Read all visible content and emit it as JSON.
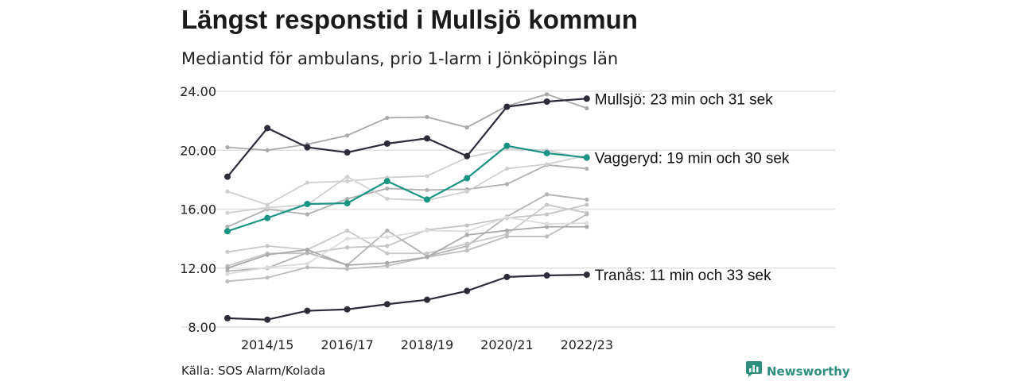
{
  "title": "Längst responstid i Mullsjö kommun",
  "subtitle": "Mediantid för ambulans, prio 1-larm i Jönköpings län",
  "source": "Källa: SOS Alarm/Kolada",
  "brand": {
    "name": "Newsworthy",
    "icon": "newsworthy-logo-icon",
    "color": "#2f8f7f"
  },
  "chart_data": {
    "type": "line",
    "title": "Längst responstid i Mullsjö kommun",
    "subtitle": "Mediantid för ambulans, prio 1-larm i Jönköpings län",
    "x": [
      "2013/14",
      "2014/15",
      "2015/16",
      "2016/17",
      "2017/18",
      "2018/19",
      "2019/20",
      "2020/21",
      "2021/22",
      "2022/23"
    ],
    "x_tick_labels": [
      "2014/15",
      "2016/17",
      "2018/19",
      "2020/21",
      "2022/23"
    ],
    "y_ticks": [
      "8.00",
      "12.00",
      "16.00",
      "20.00",
      "24.00"
    ],
    "ylim": [
      8,
      24
    ],
    "grid": true,
    "highlight_series": [
      {
        "name": "Mullsjö",
        "label": "Mullsjö: 23 min och 31 sek",
        "color": "#2b2b3a",
        "values": [
          18.2,
          21.5,
          20.2,
          19.85,
          20.45,
          20.8,
          19.6,
          22.95,
          23.3,
          23.5
        ]
      },
      {
        "name": "Vaggeryd",
        "label": "Vaggeryd: 19 min och 30 sek",
        "color": "#1a9482",
        "values": [
          14.5,
          15.4,
          16.35,
          16.4,
          17.9,
          16.65,
          18.1,
          20.3,
          19.8,
          19.5
        ]
      },
      {
        "name": "Tranås",
        "label": "Tranås: 11 min och 33 sek",
        "color": "#2b2b3a",
        "values": [
          8.6,
          8.5,
          9.1,
          9.2,
          9.55,
          9.85,
          10.45,
          11.4,
          11.5,
          11.55
        ]
      }
    ],
    "background_series": [
      {
        "color": "#a8a8a8",
        "values": [
          20.2,
          20.0,
          20.4,
          21.0,
          22.2,
          22.25,
          21.55,
          23.0,
          23.8,
          22.85
        ]
      },
      {
        "color": "#b0b0b0",
        "values": [
          14.8,
          16.0,
          15.65,
          16.7,
          17.4,
          17.3,
          17.35,
          17.7,
          19.0,
          18.75
        ]
      },
      {
        "color": "#cfcfcf",
        "values": [
          17.2,
          16.3,
          17.8,
          17.9,
          18.15,
          18.25,
          19.5,
          20.1,
          20.0,
          19.4
        ]
      },
      {
        "color": "#d0d0d0",
        "values": [
          15.75,
          16.1,
          16.3,
          18.2,
          16.7,
          16.6,
          17.2,
          18.75,
          19.05,
          19.65
        ]
      },
      {
        "color": "#c4c4c4",
        "values": [
          12.15,
          13.0,
          13.0,
          13.4,
          13.5,
          14.6,
          14.9,
          15.4,
          15.65,
          16.3
        ]
      },
      {
        "color": "#b4b4b4",
        "values": [
          11.8,
          12.0,
          13.05,
          12.2,
          14.55,
          12.8,
          13.5,
          15.5,
          17.0,
          16.65
        ]
      },
      {
        "color": "#c8c8c8",
        "values": [
          13.1,
          13.5,
          13.25,
          14.55,
          13.0,
          13.0,
          13.65,
          14.3,
          16.3,
          15.75
        ]
      },
      {
        "color": "#bdbdbd",
        "values": [
          11.1,
          11.35,
          12.05,
          11.95,
          12.15,
          12.75,
          13.2,
          14.15,
          14.15,
          15.65
        ]
      },
      {
        "color": "#a9a9a9",
        "values": [
          12.0,
          12.9,
          13.25,
          12.2,
          12.35,
          12.75,
          14.25,
          14.55,
          14.8,
          14.8
        ]
      },
      {
        "color": "#dcdcdc",
        "values": [
          11.6,
          12.05,
          12.3,
          14.0,
          14.1,
          14.55,
          14.5,
          15.45,
          15.0,
          15.05
        ]
      }
    ]
  }
}
